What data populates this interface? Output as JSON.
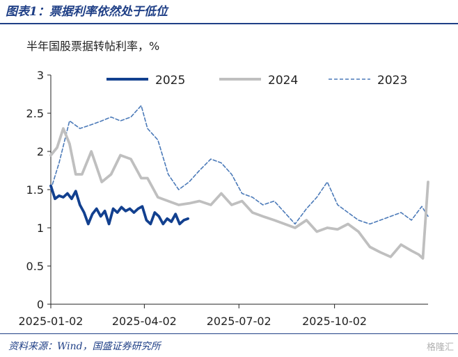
{
  "header": {
    "title": "图表1：票据利率依然处于低位"
  },
  "footer": {
    "source": "资料来源：Wind，国盛证券研究所",
    "watermark": "格隆汇"
  },
  "colors": {
    "s2025": "#12408f",
    "s2024": "#bfbfbf",
    "s2023": "#4a79b8",
    "title": "#1f3f86"
  },
  "chart_data": {
    "type": "line",
    "title": "",
    "ylabel": "半年国股票据转帖利率，%",
    "xlabel": "",
    "ylim": [
      0,
      3
    ],
    "yticks": [
      "0",
      "0.5",
      "1",
      "1.5",
      "2",
      "2.5",
      "3"
    ],
    "xticks": [
      "2025-01-02",
      "2025-04-02",
      "2025-07-02",
      "2025-10-02"
    ],
    "x_range": [
      "2025-01-02",
      "2025-12-31"
    ],
    "legend_position": "top",
    "grid": false,
    "series": [
      {
        "name": "2025",
        "color": "#12408f",
        "style": "solid-thick",
        "x": [
          "2025-01-02",
          "2025-01-06",
          "2025-01-10",
          "2025-01-14",
          "2025-01-18",
          "2025-01-22",
          "2025-01-26",
          "2025-01-30",
          "2025-02-03",
          "2025-02-07",
          "2025-02-11",
          "2025-02-15",
          "2025-02-19",
          "2025-02-23",
          "2025-02-27",
          "2025-03-03",
          "2025-03-07",
          "2025-03-11",
          "2025-03-15",
          "2025-03-19",
          "2025-03-23",
          "2025-03-27",
          "2025-03-31",
          "2025-04-04",
          "2025-04-08",
          "2025-04-12",
          "2025-04-16",
          "2025-04-20",
          "2025-04-24",
          "2025-04-28",
          "2025-05-02",
          "2025-05-06",
          "2025-05-10",
          "2025-05-14"
        ],
        "values": [
          1.55,
          1.38,
          1.42,
          1.4,
          1.45,
          1.38,
          1.48,
          1.3,
          1.2,
          1.05,
          1.18,
          1.25,
          1.15,
          1.22,
          1.05,
          1.25,
          1.2,
          1.27,
          1.22,
          1.25,
          1.2,
          1.25,
          1.28,
          1.1,
          1.05,
          1.2,
          1.15,
          1.05,
          1.12,
          1.08,
          1.18,
          1.05,
          1.1,
          1.12
        ]
      },
      {
        "name": "2024",
        "color": "#bfbfbf",
        "style": "solid-thick",
        "x": [
          "2025-01-02",
          "2025-01-08",
          "2025-01-14",
          "2025-01-20",
          "2025-01-26",
          "2025-02-01",
          "2025-02-10",
          "2025-02-20",
          "2025-03-01",
          "2025-03-10",
          "2025-03-20",
          "2025-03-30",
          "2025-04-05",
          "2025-04-15",
          "2025-04-25",
          "2025-05-05",
          "2025-05-15",
          "2025-05-25",
          "2025-06-05",
          "2025-06-15",
          "2025-06-25",
          "2025-07-05",
          "2025-07-15",
          "2025-07-25",
          "2025-08-05",
          "2025-08-15",
          "2025-08-25",
          "2025-09-05",
          "2025-09-15",
          "2025-09-25",
          "2025-10-05",
          "2025-10-15",
          "2025-10-25",
          "2025-11-05",
          "2025-11-15",
          "2025-11-25",
          "2025-12-05",
          "2025-12-15",
          "2025-12-22",
          "2025-12-26",
          "2025-12-31"
        ],
        "values": [
          1.95,
          2.05,
          2.3,
          2.1,
          1.7,
          1.7,
          2.0,
          1.6,
          1.7,
          1.95,
          1.9,
          1.65,
          1.65,
          1.4,
          1.35,
          1.3,
          1.32,
          1.35,
          1.3,
          1.45,
          1.3,
          1.35,
          1.2,
          1.15,
          1.1,
          1.05,
          1.0,
          1.1,
          0.95,
          1.0,
          0.98,
          1.05,
          0.95,
          0.75,
          0.68,
          0.62,
          0.78,
          0.7,
          0.65,
          0.6,
          1.6
        ]
      },
      {
        "name": "2023",
        "color": "#4a79b8",
        "style": "dashed",
        "x": [
          "2025-01-02",
          "2025-01-10",
          "2025-01-20",
          "2025-01-30",
          "2025-02-10",
          "2025-02-20",
          "2025-03-01",
          "2025-03-10",
          "2025-03-20",
          "2025-03-30",
          "2025-04-05",
          "2025-04-15",
          "2025-04-25",
          "2025-05-05",
          "2025-05-15",
          "2025-05-25",
          "2025-06-05",
          "2025-06-15",
          "2025-06-25",
          "2025-07-05",
          "2025-07-15",
          "2025-07-25",
          "2025-08-05",
          "2025-08-15",
          "2025-08-25",
          "2025-09-05",
          "2025-09-15",
          "2025-09-25",
          "2025-10-05",
          "2025-10-15",
          "2025-10-25",
          "2025-11-05",
          "2025-11-15",
          "2025-11-25",
          "2025-12-05",
          "2025-12-15",
          "2025-12-25",
          "2025-12-31"
        ],
        "values": [
          1.5,
          1.85,
          2.4,
          2.3,
          2.35,
          2.4,
          2.45,
          2.4,
          2.45,
          2.6,
          2.3,
          2.15,
          1.7,
          1.5,
          1.6,
          1.75,
          1.9,
          1.85,
          1.7,
          1.45,
          1.4,
          1.3,
          1.35,
          1.2,
          1.05,
          1.25,
          1.4,
          1.6,
          1.3,
          1.2,
          1.1,
          1.05,
          1.1,
          1.15,
          1.2,
          1.1,
          1.28,
          1.15
        ]
      }
    ]
  }
}
